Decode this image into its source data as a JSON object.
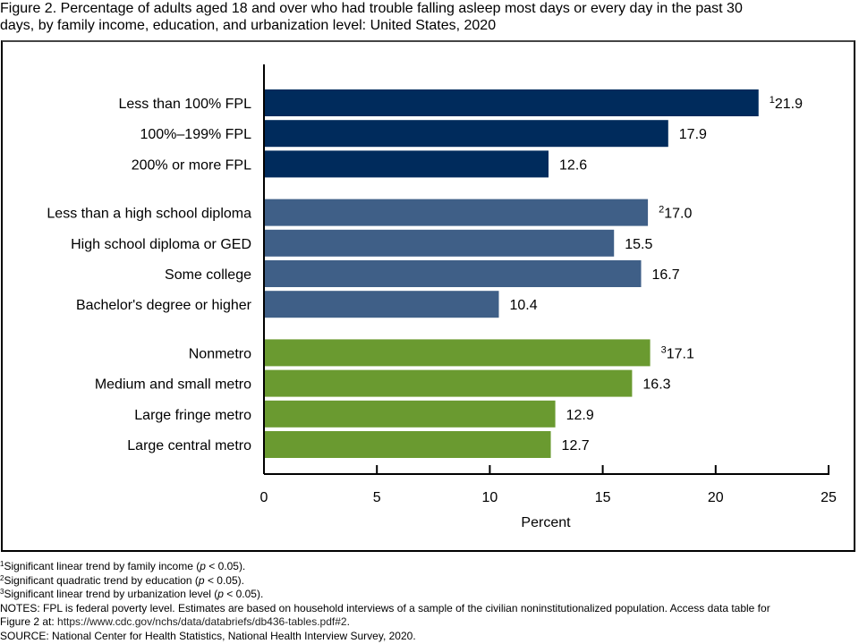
{
  "figure": {
    "title_line1": "Figure 2. Percentage of adults aged 18 and over who had trouble falling asleep most days or every day in the past 30",
    "title_line2": "days, by family income, education, and urbanization level: United States, 2020"
  },
  "chart_data": {
    "type": "bar",
    "orientation": "horizontal",
    "title": "Percentage of adults aged 18 and over who had trouble falling asleep most days or every day in the past 30 days, by family income, education, and urbanization level: United States, 2020",
    "xlabel": "Percent",
    "ylabel": "",
    "xlim": [
      0,
      25
    ],
    "xticks": [
      0,
      5,
      10,
      15,
      20,
      25
    ],
    "grid": false,
    "legend": "none",
    "groups": [
      {
        "name": "Family income",
        "color": "#002b5c",
        "categories": [
          "Less than 100% FPL",
          "100%–199% FPL",
          "200% or more FPL"
        ],
        "values": [
          21.9,
          17.9,
          12.6
        ],
        "labels": [
          "21.9",
          "17.9",
          "12.6"
        ],
        "footnote_marks": [
          "1",
          "",
          ""
        ]
      },
      {
        "name": "Education",
        "color": "#3f5f87",
        "categories": [
          "Less than a high school diploma",
          "High school diploma or GED",
          "Some college",
          "Bachelor's degree or higher"
        ],
        "values": [
          17.0,
          15.5,
          16.7,
          10.4
        ],
        "labels": [
          "17.0",
          "15.5",
          "16.7",
          "10.4"
        ],
        "footnote_marks": [
          "2",
          "",
          "",
          ""
        ]
      },
      {
        "name": "Urbanization level",
        "color": "#6a9a30",
        "categories": [
          "Nonmetro",
          "Medium and small metro",
          "Large fringe metro",
          "Large central metro"
        ],
        "values": [
          17.1,
          16.3,
          12.9,
          12.7
        ],
        "labels": [
          "17.1",
          "16.3",
          "12.9",
          "12.7"
        ],
        "footnote_marks": [
          "3",
          "",
          "",
          ""
        ]
      }
    ]
  },
  "footnotes": [
    {
      "mark": "1",
      "pre": "Significant linear trend by family income (",
      "italic": "p",
      "post": " < 0.05)."
    },
    {
      "mark": "2",
      "pre": "Significant quadratic trend by education (",
      "italic": "p",
      "post": " < 0.05)."
    },
    {
      "mark": "3",
      "pre": "Significant linear trend by urbanization level (",
      "italic": "p",
      "post": " < 0.05)."
    }
  ],
  "notes": {
    "line1": "NOTES: FPL is federal poverty level. Estimates are based on household interviews of a sample of the civilian noninstitutionalized population. Access data table for",
    "line2_pre": "Figure 2 at: ",
    "line2_url": "https://www.cdc.gov/nchs/data/databriefs/db436-tables.pdf#2",
    "line2_post": ".",
    "source": "SOURCE: National Center for Health Statistics, National Health Interview Survey, 2020."
  }
}
